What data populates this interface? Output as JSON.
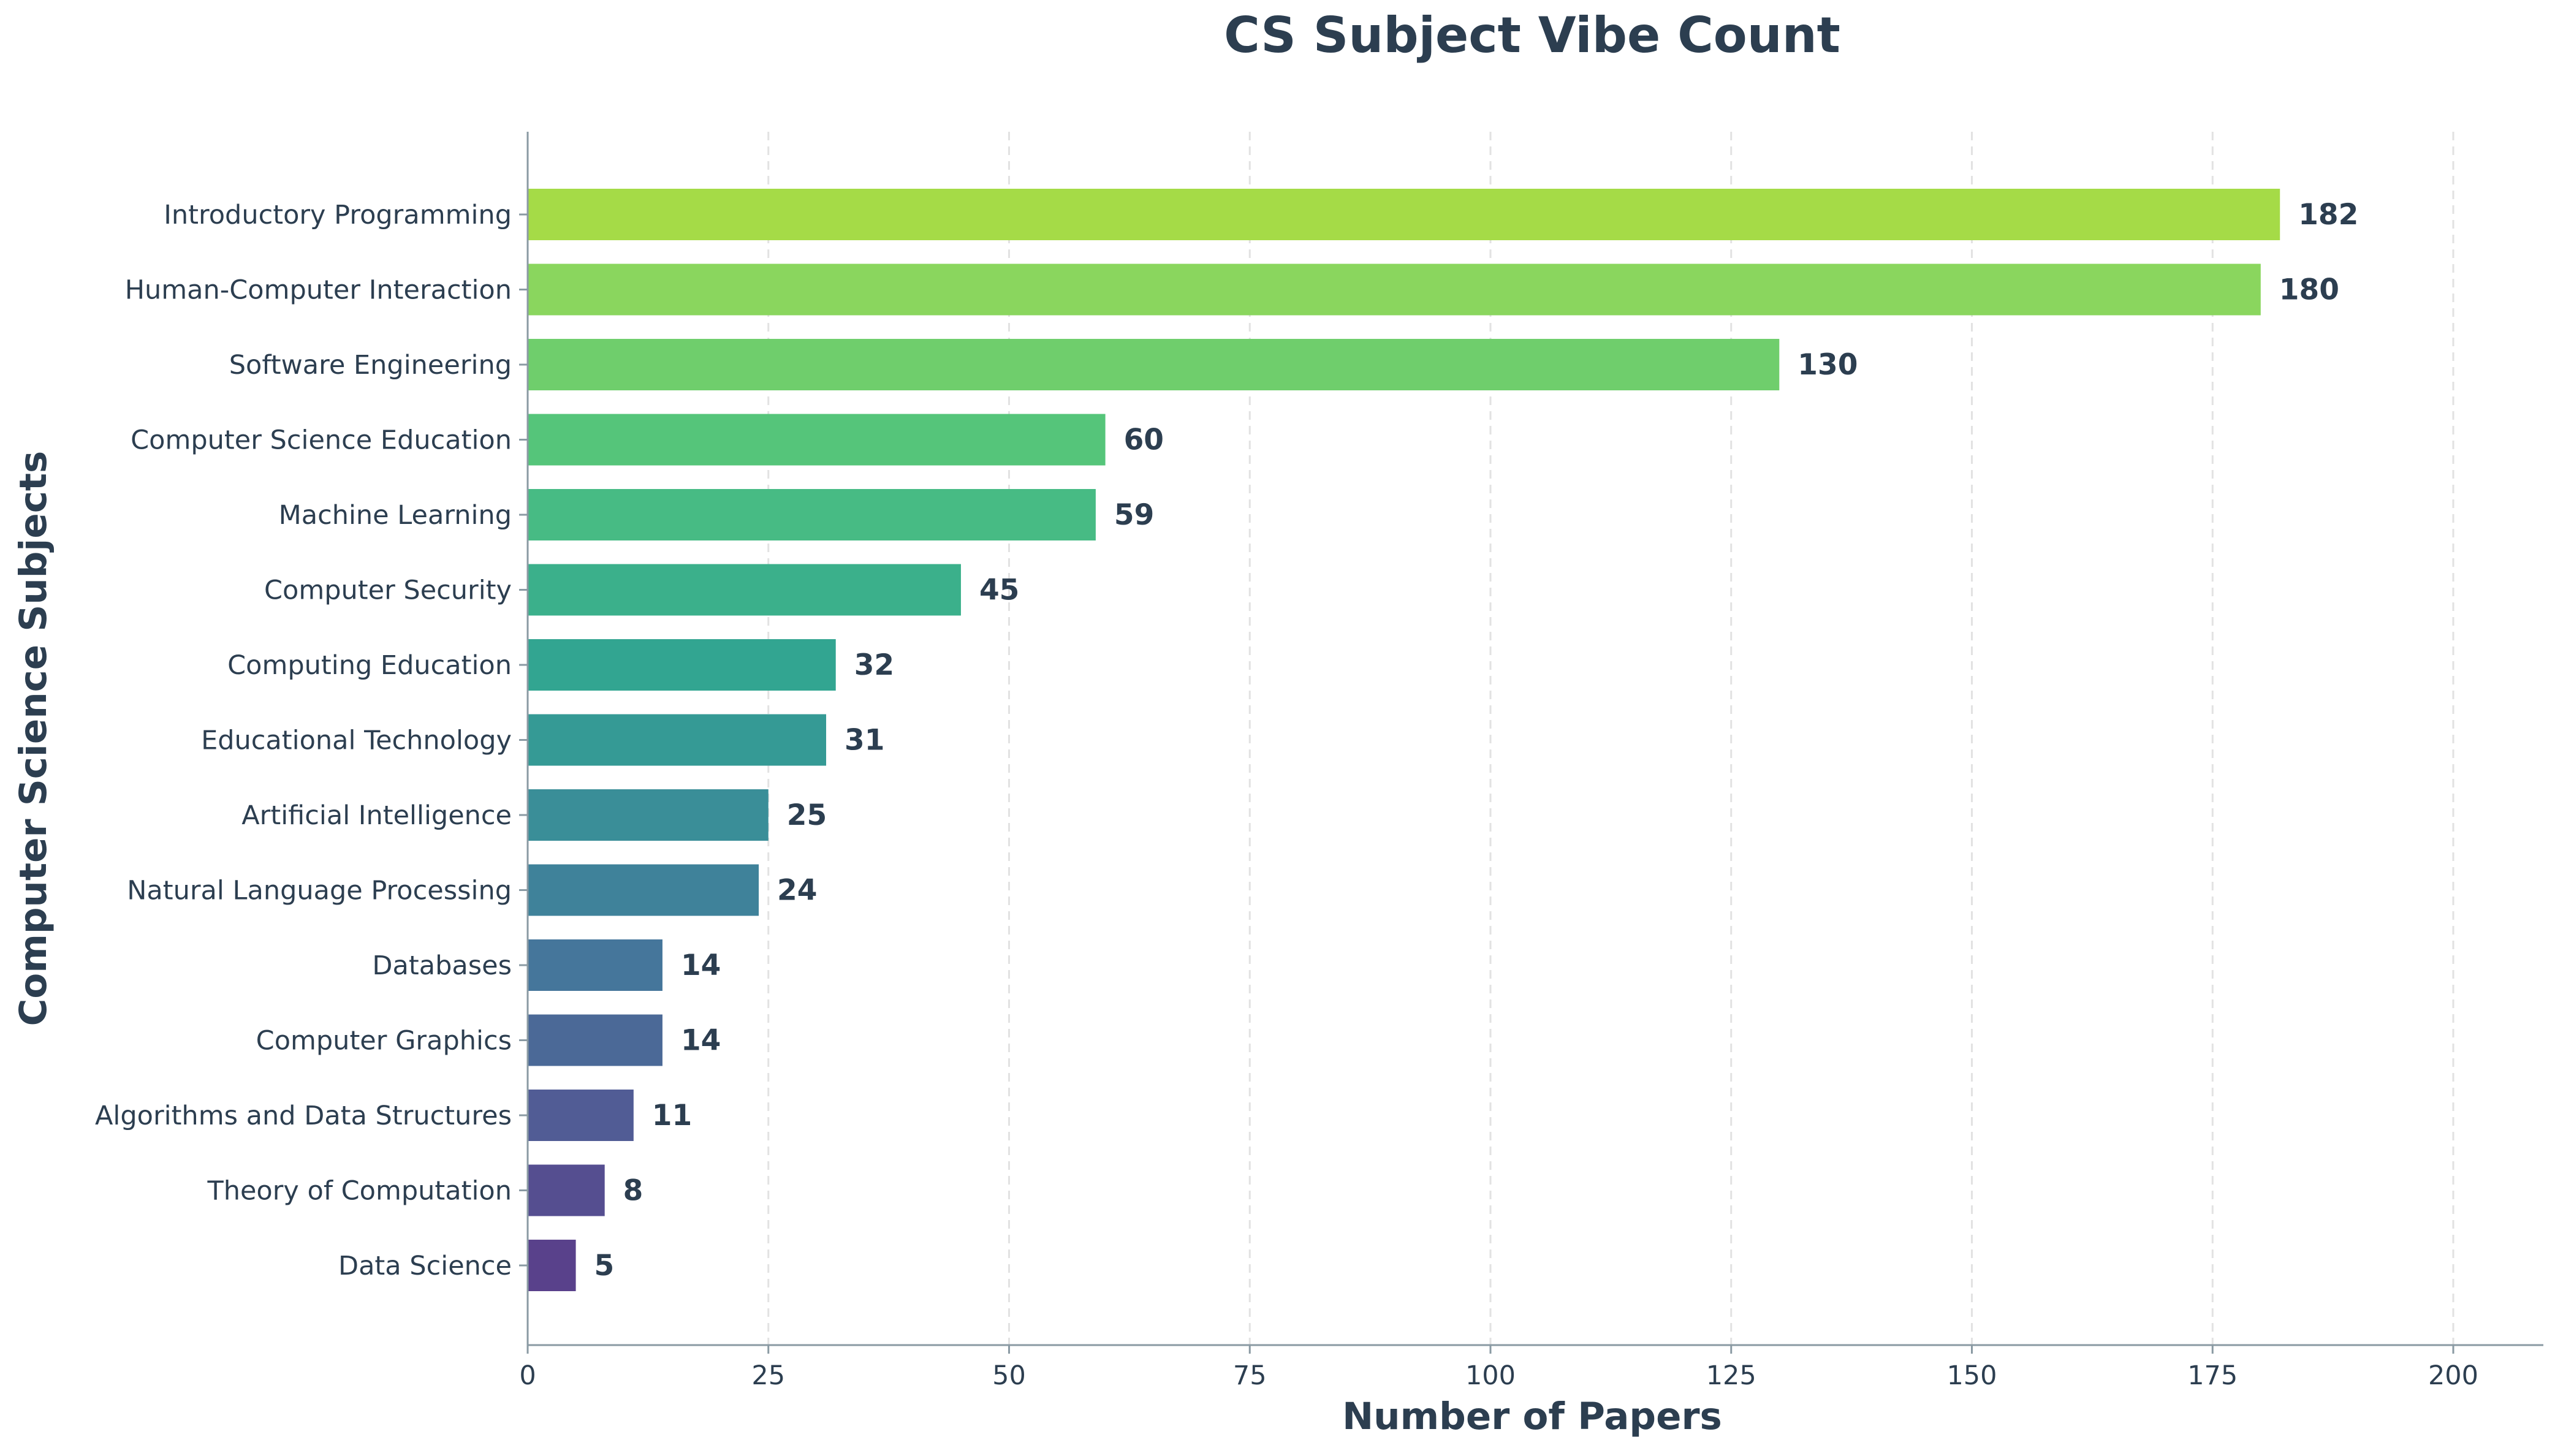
{
  "chart_data": {
    "type": "bar",
    "orientation": "horizontal",
    "title": "CS Subject Vibe Count",
    "xlabel": "Number of Papers",
    "ylabel": "Computer Science Subjects",
    "xlim": [
      0,
      210
    ],
    "xticks": [
      0,
      25,
      50,
      75,
      100,
      125,
      150,
      175,
      200
    ],
    "grid": "x-dashed",
    "categories": [
      "Introductory Programming",
      "Human-Computer Interaction",
      "Software Engineering",
      "Computer Science Education",
      "Machine Learning",
      "Computer Security",
      "Computing Education",
      "Educational Technology",
      "Artificial Intelligence",
      "Natural Language Processing",
      "Databases",
      "Computer Graphics",
      "Algorithms and Data Structures",
      "Theory of Computation",
      "Data Science"
    ],
    "values": [
      182,
      180,
      130,
      60,
      59,
      45,
      32,
      31,
      25,
      24,
      14,
      14,
      11,
      8,
      5
    ],
    "colors": [
      "#a5db47",
      "#8ad65e",
      "#6fce6c",
      "#55c57a",
      "#47bb84",
      "#3bb08b",
      "#32a591",
      "#359a95",
      "#3a8e98",
      "#3f829a",
      "#45769b",
      "#4b6997",
      "#515c95",
      "#554e90",
      "#59418b"
    ],
    "text_color": "#2c3e50",
    "axis_color": "#8a9aa3",
    "grid_color": "#e2e2e2"
  }
}
